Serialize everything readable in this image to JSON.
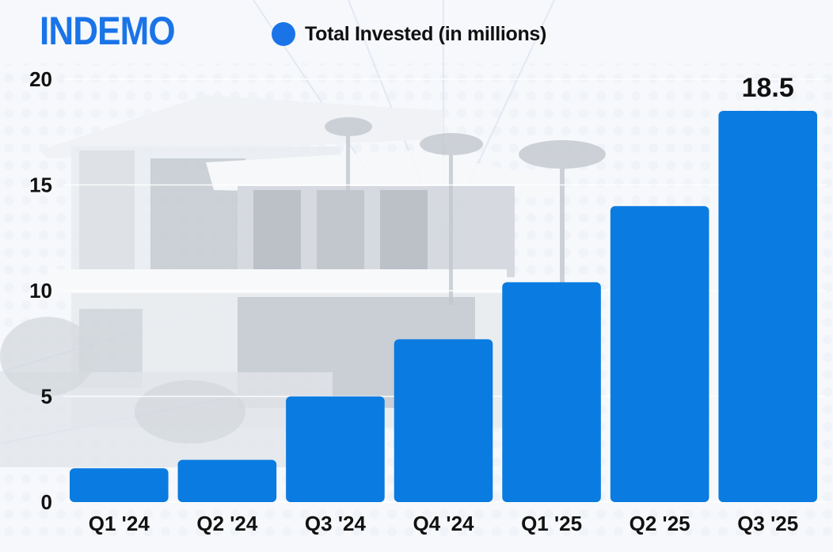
{
  "brand": {
    "name": "INDEMO",
    "color": "#1a74e8"
  },
  "legend": {
    "label": "Total Invested (in millions)",
    "color": "#1a74e8"
  },
  "chart_data": {
    "type": "bar",
    "categories": [
      "Q1 '24",
      "Q2 '24",
      "Q3 '24",
      "Q4 '24",
      "Q1 '25",
      "Q2 '25",
      "Q3 '25"
    ],
    "series": [
      {
        "name": "Total Invested (in millions)",
        "values": [
          1.6,
          2.0,
          5.0,
          7.7,
          10.4,
          14.0,
          18.5
        ],
        "color": "#0a7be0"
      }
    ],
    "data_labels": [
      {
        "category": "Q3 '25",
        "text": "18.5"
      }
    ],
    "yticks": [
      0,
      5,
      10,
      15,
      20
    ],
    "ylim": [
      0,
      20
    ],
    "grid": true,
    "legend_position": "top",
    "title": "",
    "xlabel": "",
    "ylabel": ""
  }
}
